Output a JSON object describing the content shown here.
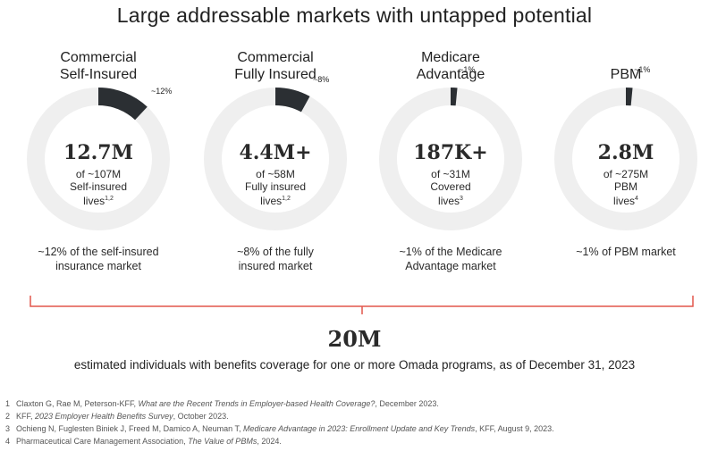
{
  "title": "Large addressable markets with untapped potential",
  "colors": {
    "ring": "#efefef",
    "segment": "#2b2f33",
    "bracket": "#e2564b"
  },
  "markets": [
    {
      "title_line1": "Commercial",
      "title_line2": "Self-Insured",
      "share_label": "~12%",
      "share_pct": 12,
      "big": "12.7M",
      "sub1": "of ~107M",
      "sub2": "Self-insured",
      "sub3": "lives",
      "sup": "1,2",
      "desc1": "~12% of the self-insured",
      "desc2": "insurance market"
    },
    {
      "title_line1": "Commercial",
      "title_line2": "Fully Insured",
      "share_label": "~8%",
      "share_pct": 8,
      "big": "4.4M+",
      "sub1": "of ~58M",
      "sub2": "Fully insured",
      "sub3": "lives",
      "sup": "1,2",
      "desc1": "~8% of the fully",
      "desc2": "insured market"
    },
    {
      "title_line1": "Medicare",
      "title_line2": "Advantage",
      "share_label": "~1%",
      "share_pct": 1.5,
      "big": "187K+",
      "sub1": "of ~31M",
      "sub2": "Covered",
      "sub3": "lives",
      "sup": "3",
      "desc1": "~1% of the Medicare",
      "desc2": "Advantage market"
    },
    {
      "title_line1": "",
      "title_line2": "PBM",
      "share_label": "~1%",
      "share_pct": 1.5,
      "big": "2.8M",
      "sub1": "of ~275M",
      "sub2": "PBM",
      "sub3": "lives",
      "sup": "4",
      "desc1": "~1% of PBM market",
      "desc2": ""
    }
  ],
  "total": {
    "value": "20M",
    "description": "estimated individuals with benefits coverage for one or more Omada programs, as of December 31, 2023"
  },
  "footnotes": [
    {
      "num": "1",
      "pre": "Claxton G, Rae M, Peterson-KFF, ",
      "ital": "What are the Recent Trends in Employer-based Health Coverage?",
      "post": ", December 2023."
    },
    {
      "num": "2",
      "pre": "KFF, ",
      "ital": "2023 Employer Health Benefits Survey",
      "post": ", October 2023."
    },
    {
      "num": "3",
      "pre": "Ochieng N, Fuglesten Biniek J, Freed M, Damico A, Neuman T, ",
      "ital": "Medicare Advantage in 2023: Enrollment Update and Key Trends",
      "post": ", KFF, August 9, 2023."
    },
    {
      "num": "4",
      "pre": "Pharmaceutical Care Management Association, ",
      "ital": "The Value of PBMs",
      "post": ", 2024."
    }
  ]
}
